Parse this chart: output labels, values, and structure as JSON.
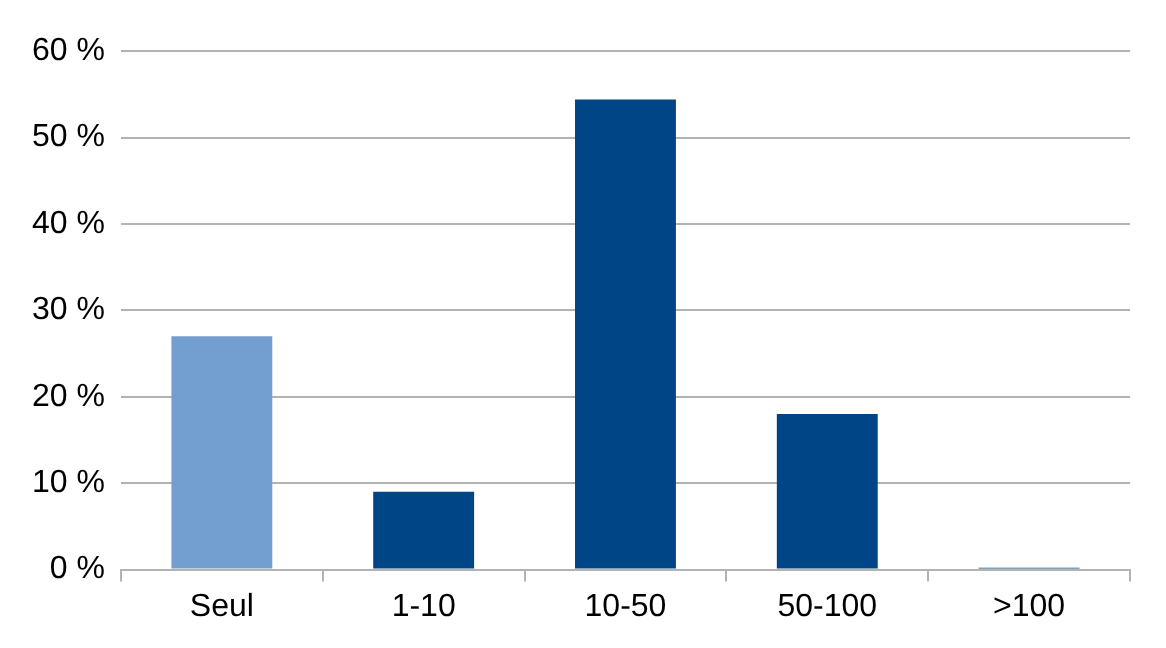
{
  "chart_data": {
    "type": "bar",
    "categories": [
      "Seul",
      "1-10",
      "10-50",
      "50-100",
      ">100"
    ],
    "values": [
      27,
      9,
      54.4,
      18,
      0.2
    ],
    "colors": [
      "#729fcf",
      "#004586",
      "#004586",
      "#004586",
      "#004586"
    ],
    "ylim": [
      0,
      60
    ],
    "yticks": [
      {
        "value": 0,
        "label": "0 %"
      },
      {
        "value": 10,
        "label": "10 %"
      },
      {
        "value": 20,
        "label": "20 %"
      },
      {
        "value": 30,
        "label": "30 %"
      },
      {
        "value": 40,
        "label": "40 %"
      },
      {
        "value": 50,
        "label": "50 %"
      },
      {
        "value": 60,
        "label": "60 %"
      }
    ],
    "grid": "y",
    "legend": false
  }
}
